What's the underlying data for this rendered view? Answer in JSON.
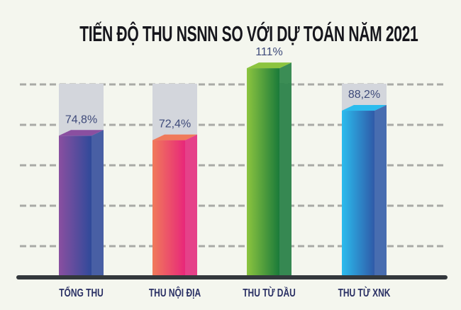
{
  "chart_data": {
    "type": "bar",
    "title": "TIẾN ĐỘ THU NSNN SO VỚI DỰ TOÁN NĂM 2021",
    "categories": [
      "TỔNG THU",
      "THU NỘI ĐỊA",
      "THU TỪ DẦU",
      "THU TỪ XNK"
    ],
    "values": [
      74.8,
      72.4,
      111,
      88.2
    ],
    "value_labels": [
      "74,8%",
      "72,4%",
      "111%",
      "88,2%"
    ],
    "unit": "%",
    "target_reference": 100,
    "ylim": [
      0,
      111
    ],
    "grid": true,
    "style": "3d-bar",
    "colors": [
      [
        "#8a4fa0",
        "#2f4a9a"
      ],
      [
        "#f07a5a",
        "#e8277a"
      ],
      [
        "#8cc43f",
        "#1a7a3a"
      ],
      [
        "#2bbcee",
        "#2f5aa8"
      ]
    ],
    "background_bar_color": "#d3d6dc",
    "axis_color": "#33383c",
    "grid_color": "#a9aaa6"
  }
}
